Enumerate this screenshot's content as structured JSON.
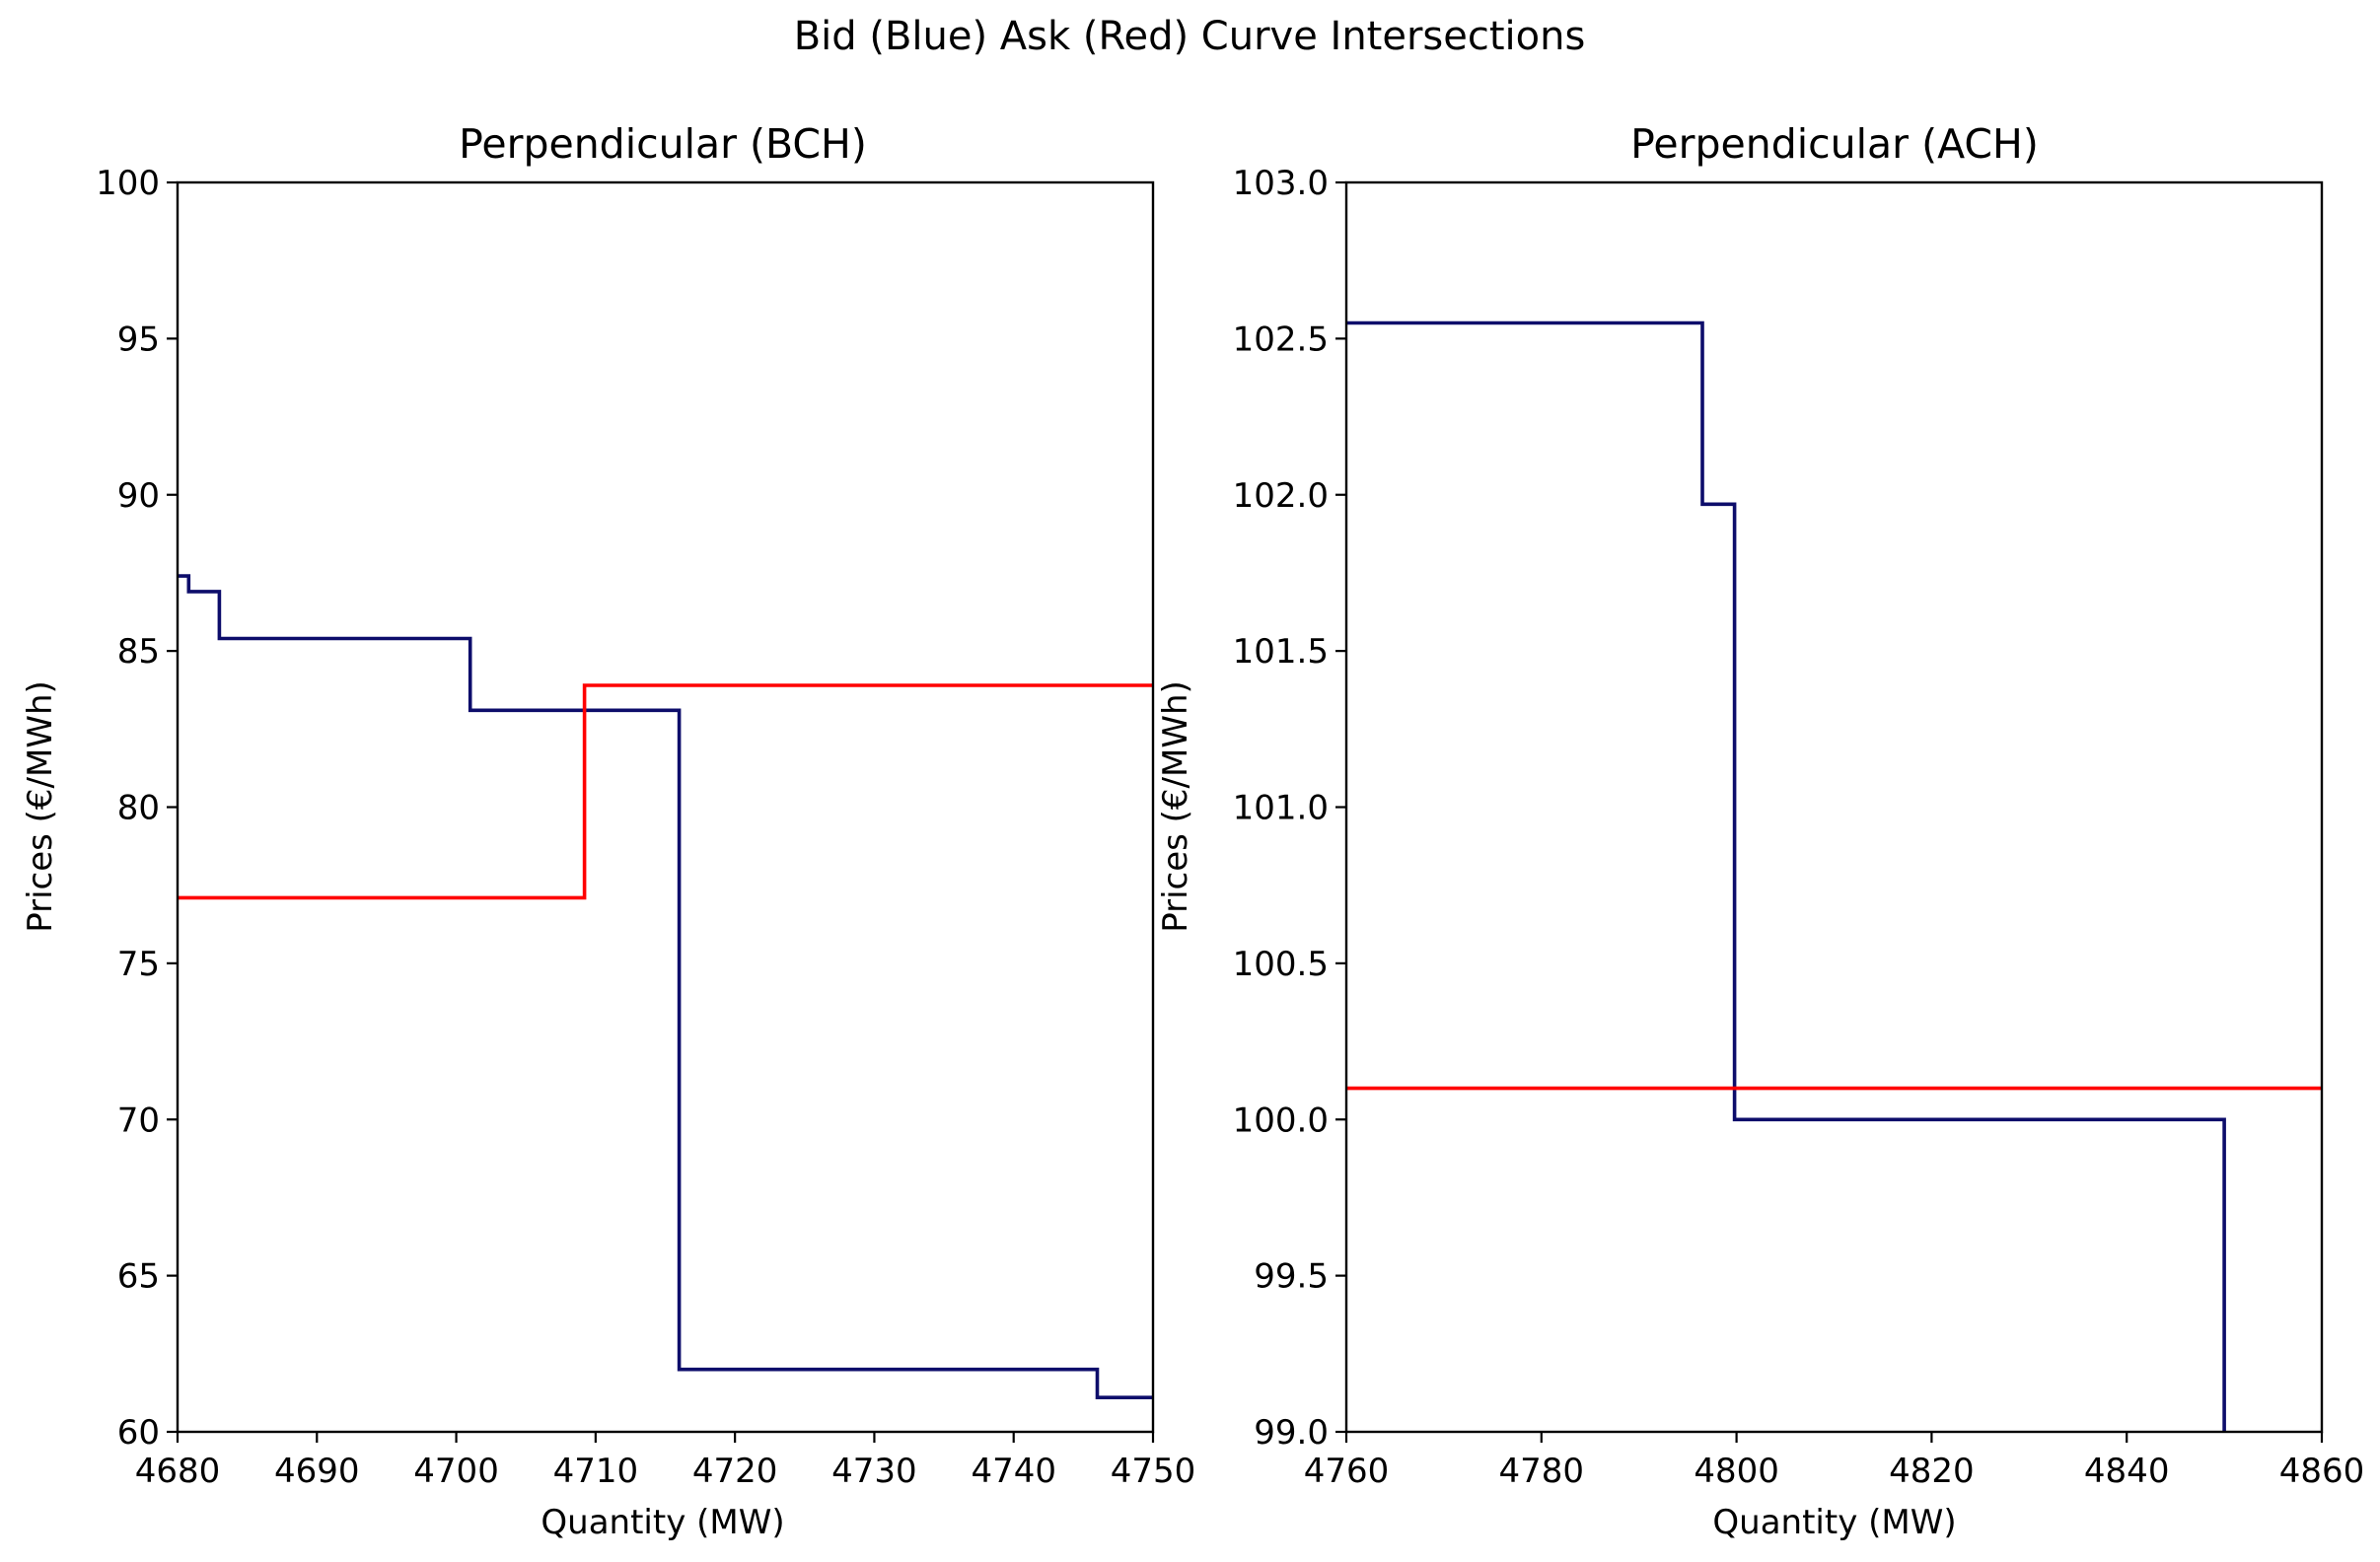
{
  "figure": {
    "suptitle": "Bid (Blue) Ask (Red) Curve Intersections"
  },
  "colors": {
    "bid": "#0d0d6b",
    "ask": "#ff0000",
    "axes": "#000000",
    "background": "#ffffff"
  },
  "chart_data": [
    {
      "type": "line",
      "step": true,
      "title": "Perpendicular (BCH)",
      "xlabel": "Quantity (MW)",
      "ylabel": "Prices (€/MWh)",
      "xlim": [
        4680,
        4750
      ],
      "ylim": [
        60,
        100
      ],
      "xticks": [
        4680,
        4690,
        4700,
        4710,
        4720,
        4730,
        4740,
        4750
      ],
      "xtick_labels": [
        "4680",
        "4690",
        "4700",
        "4710",
        "4720",
        "4730",
        "4740",
        "4750"
      ],
      "yticks": [
        60,
        65,
        70,
        75,
        80,
        85,
        90,
        95,
        100
      ],
      "ytick_labels": [
        "60",
        "65",
        "70",
        "75",
        "80",
        "85",
        "90",
        "95",
        "100"
      ],
      "grid": false,
      "series": [
        {
          "role": "bid",
          "color": "#0d0d6b",
          "points": [
            [
              4680,
              87.4
            ],
            [
              4680.8,
              87.4
            ],
            [
              4680.8,
              86.9
            ],
            [
              4683,
              86.9
            ],
            [
              4683,
              85.4
            ],
            [
              4701,
              85.4
            ],
            [
              4701,
              83.1
            ],
            [
              4716,
              83.1
            ],
            [
              4716,
              62.0
            ],
            [
              4746,
              62.0
            ],
            [
              4746,
              61.1
            ],
            [
              4750,
              61.1
            ]
          ]
        },
        {
          "role": "ask",
          "color": "#ff0000",
          "points": [
            [
              4680,
              77.1
            ],
            [
              4709.2,
              77.1
            ],
            [
              4709.2,
              83.9
            ],
            [
              4750,
              83.9
            ]
          ]
        }
      ]
    },
    {
      "type": "line",
      "step": true,
      "title": "Perpendicular (ACH)",
      "xlabel": "Quantity (MW)",
      "ylabel": "Prices (€/MWh)",
      "xlim": [
        4760,
        4860
      ],
      "ylim": [
        99.0,
        103.0
      ],
      "xticks": [
        4760,
        4780,
        4800,
        4820,
        4840,
        4860
      ],
      "xtick_labels": [
        "4760",
        "4780",
        "4800",
        "4820",
        "4840",
        "4860"
      ],
      "yticks": [
        99.0,
        99.5,
        100.0,
        100.5,
        101.0,
        101.5,
        102.0,
        102.5,
        103.0
      ],
      "ytick_labels": [
        "99.0",
        "99.5",
        "100.0",
        "100.5",
        "101.0",
        "101.5",
        "102.0",
        "102.5",
        "103.0"
      ],
      "grid": false,
      "series": [
        {
          "role": "bid",
          "color": "#0d0d6b",
          "points": [
            [
              4760,
              102.55
            ],
            [
              4796.5,
              102.55
            ],
            [
              4796.5,
              101.97
            ],
            [
              4799.8,
              101.97
            ],
            [
              4799.8,
              100.0
            ],
            [
              4850,
              100.0
            ],
            [
              4850,
              99.0
            ]
          ]
        },
        {
          "role": "ask",
          "color": "#ff0000",
          "points": [
            [
              4760,
              100.1
            ],
            [
              4860,
              100.1
            ]
          ]
        }
      ]
    }
  ]
}
